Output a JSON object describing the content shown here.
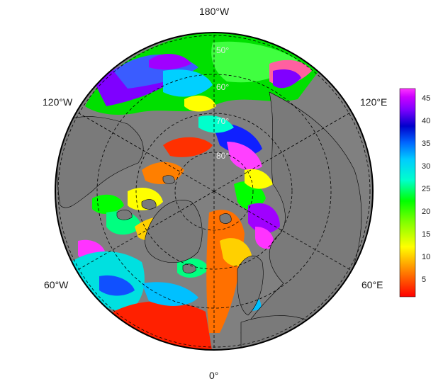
{
  "map": {
    "longitude_labels": {
      "top": "180°W",
      "upper_left": "120°W",
      "upper_right": "120°E",
      "lower_left": "60°W",
      "lower_right": "60°E",
      "bottom": "0°"
    },
    "latitude_labels": [
      "50°",
      "60°",
      "70°",
      "80°"
    ],
    "background_color": "#808080",
    "gridline_style": "dashed"
  },
  "colorbar": {
    "ticks": [
      "45",
      "40",
      "35",
      "30",
      "25",
      "20",
      "15",
      "10",
      "5"
    ],
    "colors": [
      "#ff0000",
      "#ff7f00",
      "#ffff00",
      "#7fff00",
      "#00ff00",
      "#00ffcc",
      "#00ccff",
      "#0066ff",
      "#0000cc",
      "#7f00ff",
      "#cc00ff",
      "#ff33ff"
    ]
  }
}
